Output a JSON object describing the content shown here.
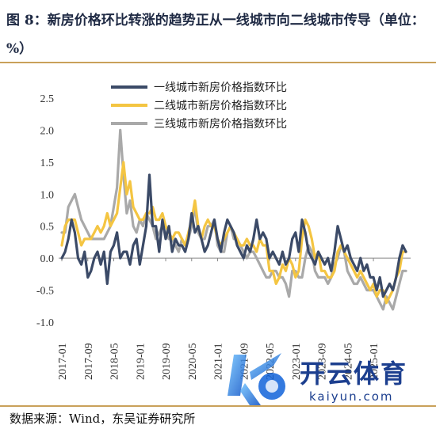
{
  "title": "图 8：新房价格环比转涨的趋势正从一线城市向二线城市传导（单位：%）",
  "source": "数据来源：Wind，东吴证券研究所",
  "watermark": {
    "brand": "开云体育",
    "site": "kaiyun.com"
  },
  "chart_data": {
    "type": "line",
    "title": "",
    "xlabel": "",
    "ylabel": "",
    "ylim": [
      -1.0,
      2.5
    ],
    "y_ticks": [
      "2.5",
      "2.0",
      "1.5",
      "1.0",
      "0.5",
      "0.0",
      "-0.5",
      "-1.0"
    ],
    "x_ticks": [
      "2017-01",
      "2017-09",
      "2018-05",
      "2019-01",
      "2019-09",
      "2020-05",
      "2021-01",
      "2021-09",
      "2022-05",
      "2023-01",
      "2023-09",
      "2024-05",
      "2025-01"
    ],
    "legend_position": "top",
    "grid": false,
    "series": [
      {
        "name": "一线城市新房价格指数环比",
        "color": "#3b4a67",
        "values": [
          0.0,
          0.1,
          0.3,
          0.6,
          0.4,
          0.0,
          -0.1,
          0.1,
          -0.3,
          -0.2,
          0.0,
          0.1,
          -0.1,
          0.1,
          -0.4,
          0.1,
          0.2,
          0.4,
          0.0,
          0.1,
          0.1,
          -0.1,
          0.2,
          0.3,
          -0.1,
          0.2,
          0.5,
          1.3,
          0.5,
          0.5,
          0.1,
          0.6,
          0.3,
          0.5,
          0.1,
          0.3,
          0.2,
          0.2,
          0.1,
          0.3,
          0.7,
          0.4,
          0.5,
          0.3,
          0.1,
          0.2,
          0.4,
          0.6,
          0.3,
          0.1,
          0.4,
          0.6,
          0.5,
          0.4,
          0.2,
          0.1,
          0.0,
          0.2,
          0.1,
          0.3,
          0.6,
          0.3,
          0.4,
          0.3,
          0.0,
          0.1,
          0.0,
          -0.1,
          0.1,
          -0.1,
          0.0,
          0.3,
          0.4,
          0.1,
          0.6,
          0.4,
          0.1,
          0.0,
          -0.1,
          0.1,
          0.0,
          -0.1,
          0.0,
          -0.2,
          0.1,
          0.5,
          0.3,
          0.1,
          0.2,
          0.0,
          -0.1,
          -0.2,
          0.0,
          -0.2,
          -0.1,
          -0.3,
          -0.3,
          -0.5,
          -0.3,
          -0.6,
          -0.5,
          -0.4,
          -0.5,
          -0.3,
          0.0,
          0.2,
          0.1
        ]
      },
      {
        "name": "二线城市新房价格指数环比",
        "color": "#f4c542",
        "values": [
          0.2,
          0.5,
          0.6,
          0.6,
          0.6,
          0.4,
          0.2,
          0.3,
          0.3,
          0.3,
          0.4,
          0.5,
          0.4,
          0.5,
          0.7,
          0.5,
          0.6,
          0.7,
          1.1,
          1.5,
          1.0,
          1.2,
          0.8,
          0.7,
          0.6,
          0.6,
          0.7,
          0.7,
          0.8,
          0.6,
          0.6,
          0.7,
          0.5,
          0.4,
          0.3,
          0.4,
          0.4,
          0.3,
          0.2,
          0.4,
          0.6,
          0.9,
          0.5,
          0.3,
          0.5,
          0.6,
          0.5,
          0.5,
          0.3,
          0.2,
          0.3,
          0.4,
          0.5,
          0.4,
          0.3,
          0.2,
          0.2,
          0.3,
          0.2,
          0.2,
          0.1,
          0.3,
          0.2,
          0.2,
          -0.2,
          -0.2,
          -0.4,
          -0.3,
          -0.1,
          -0.2,
          0.0,
          -0.1,
          -0.3,
          -0.2,
          0.3,
          0.6,
          0.5,
          0.3,
          0.0,
          0.1,
          -0.2,
          -0.2,
          -0.3,
          -0.3,
          -0.2,
          0.1,
          0.2,
          0.1,
          0.0,
          -0.1,
          -0.2,
          -0.3,
          -0.2,
          -0.3,
          -0.4,
          -0.5,
          -0.4,
          -0.6,
          -0.5,
          -0.5,
          -0.7,
          -0.6,
          -0.5,
          -0.3,
          -0.2,
          0.1,
          0.1
        ]
      },
      {
        "name": "三线城市新房价格指数环比",
        "color": "#a9a9a9",
        "values": [
          0.4,
          0.4,
          0.8,
          0.9,
          1.0,
          0.8,
          0.6,
          0.5,
          0.4,
          0.3,
          0.3,
          0.3,
          0.3,
          0.3,
          0.4,
          0.5,
          0.8,
          1.1,
          2.0,
          1.3,
          0.7,
          0.9,
          0.5,
          0.4,
          0.6,
          0.5,
          0.7,
          0.6,
          0.5,
          0.3,
          0.4,
          0.5,
          0.4,
          0.3,
          0.3,
          0.2,
          0.1,
          0.3,
          0.2,
          0.3,
          0.5,
          0.8,
          0.4,
          0.3,
          0.3,
          0.5,
          0.5,
          0.6,
          0.2,
          0.1,
          0.1,
          0.4,
          0.5,
          0.3,
          0.3,
          0.2,
          0.1,
          0.0,
          0.1,
          0.1,
          0.0,
          -0.1,
          -0.2,
          -0.3,
          -0.3,
          -0.2,
          -0.2,
          -0.3,
          -0.3,
          -0.4,
          -0.6,
          -0.2,
          -0.2,
          -0.3,
          -0.3,
          0.0,
          0.2,
          0.1,
          -0.2,
          -0.3,
          -0.3,
          -0.3,
          -0.4,
          -0.3,
          -0.1,
          0.0,
          0.2,
          0.1,
          -0.2,
          -0.3,
          -0.4,
          -0.4,
          -0.3,
          -0.4,
          -0.5,
          -0.5,
          -0.5,
          -0.6,
          -0.7,
          -0.8,
          -0.6,
          -0.7,
          -0.8,
          -0.6,
          -0.4,
          -0.2,
          -0.2
        ]
      }
    ]
  }
}
